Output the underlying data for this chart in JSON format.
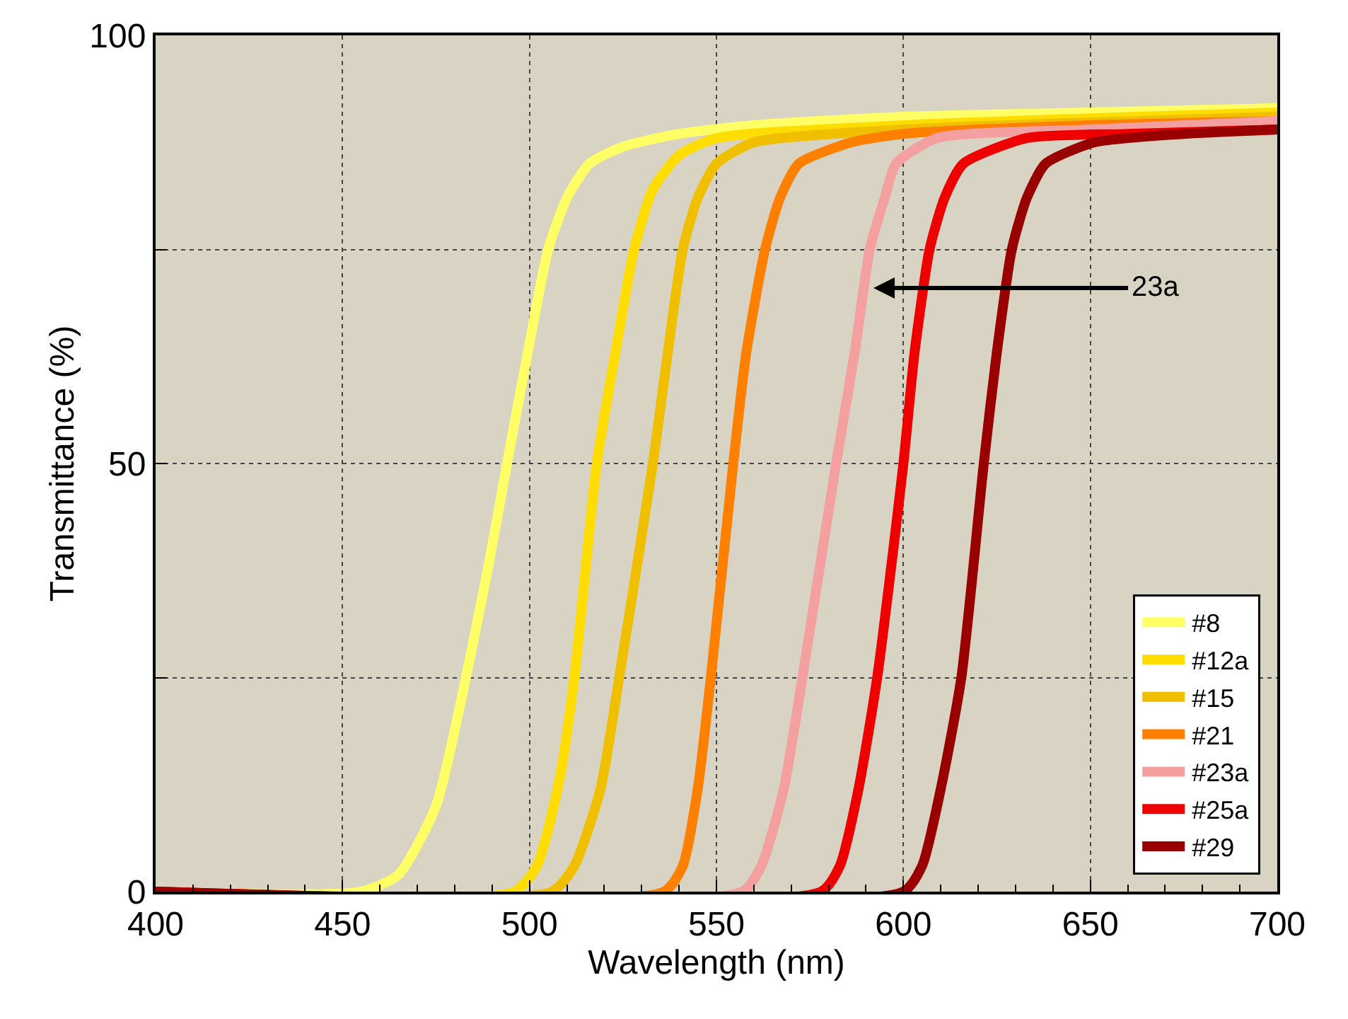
{
  "chart_data": {
    "type": "line",
    "xlabel": "Wavelength (nm)",
    "ylabel": "Transmittance (%)",
    "xlim": [
      400,
      700
    ],
    "xticks": [
      400,
      450,
      500,
      550,
      600,
      650,
      700
    ],
    "ylim": [
      0,
      100
    ],
    "yticks": [
      0,
      {
        "value": 25,
        "label": null
      },
      50,
      {
        "value": 75,
        "label": null
      },
      100
    ],
    "grid": true,
    "legend": "bottom right",
    "line_style": "solid",
    "marker": "none",
    "annotations": [
      {
        "text": "23a",
        "x": 592,
        "y": 70.5
      }
    ],
    "series": [
      {
        "name": "#8",
        "color": "#ffff66",
        "x": [
          400,
          455,
          465,
          475,
          483,
          489,
          494,
          500,
          505,
          510,
          516,
          525,
          540,
          560,
          600,
          650,
          700
        ],
        "values": [
          0,
          0,
          2,
          10,
          25,
          38,
          50,
          64,
          75,
          81,
          85,
          87,
          88.5,
          89.5,
          90.5,
          91,
          91.5
        ]
      },
      {
        "name": "#12a",
        "color": "#ffdd00",
        "x": [
          400,
          496,
          502,
          508,
          512,
          518,
          523,
          528,
          533,
          540,
          550,
          600,
          700
        ],
        "values": [
          0,
          0,
          3,
          13,
          25,
          50,
          63,
          75,
          82,
          86,
          88,
          89.5,
          91
        ]
      },
      {
        "name": "#15",
        "color": "#f0c000",
        "x": [
          400,
          506,
          512,
          519,
          524,
          533,
          537,
          541,
          545,
          550,
          560,
          600,
          700
        ],
        "values": [
          0,
          0,
          3,
          12,
          25,
          50,
          63,
          75,
          81,
          85,
          87.5,
          89,
          90.5
        ]
      },
      {
        "name": "#21",
        "color": "#ff8000",
        "x": [
          400,
          536,
          541,
          545,
          548.5,
          554.5,
          558,
          563,
          567,
          572,
          586,
          600,
          650,
          700
        ],
        "values": [
          0,
          0,
          3,
          12,
          25,
          50,
          63,
          75,
          81,
          85,
          87.5,
          88.5,
          89.5,
          90
        ]
      },
      {
        "name": "#23a",
        "color": "#f4a0a0",
        "x": [
          400,
          557,
          562,
          568,
          573,
          582,
          587,
          591,
          595,
          598,
          609,
          650,
          700
        ],
        "values": [
          0,
          0,
          3,
          12,
          25,
          50,
          63,
          75,
          81,
          85,
          88,
          89,
          90
        ]
      },
      {
        "name": "#25a",
        "color": "#ee0000",
        "x": [
          400,
          578,
          583,
          588,
          593,
          600,
          603,
          607,
          611,
          616,
          633,
          660,
          700
        ],
        "values": [
          0,
          0,
          3,
          12,
          25,
          50,
          63,
          75,
          81,
          85,
          88,
          88.5,
          89
        ]
      },
      {
        "name": "#29",
        "color": "#990000",
        "x": [
          400,
          600,
          605,
          610,
          615.5,
          621.5,
          625,
          629,
          633,
          638,
          651,
          675,
          700
        ],
        "values": [
          0,
          0,
          3,
          12,
          25,
          50,
          63,
          75,
          81,
          85,
          87.5,
          88.5,
          89
        ]
      }
    ]
  }
}
